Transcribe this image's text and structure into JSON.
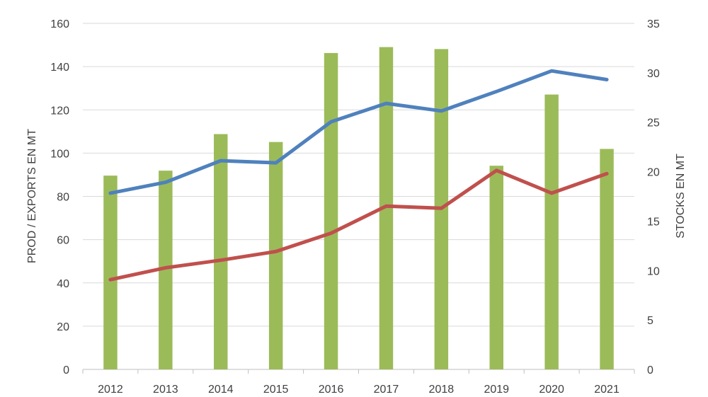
{
  "chart_data": {
    "type": "bar",
    "title": "",
    "categories": [
      "2012",
      "2013",
      "2014",
      "2015",
      "2016",
      "2017",
      "2018",
      "2019",
      "2020",
      "2021"
    ],
    "series": [
      {
        "type": "bar",
        "axis": "right",
        "color": "#9BBB59",
        "values": [
          19.6,
          20.1,
          23.8,
          23.0,
          32.0,
          32.6,
          32.4,
          20.6,
          27.8,
          22.3
        ]
      },
      {
        "type": "line",
        "axis": "left",
        "color": "#4F81BD",
        "values": [
          81.5,
          86.5,
          96.5,
          95.5,
          114.5,
          123,
          119.5,
          128.5,
          138,
          134
        ]
      },
      {
        "type": "line",
        "axis": "left",
        "color": "#C0504D",
        "values": [
          41.5,
          47,
          50.5,
          54.5,
          63,
          75.5,
          74.5,
          92,
          81.5,
          90.5
        ]
      }
    ],
    "y_left": {
      "label": "PROD / EXPORTS EN MT",
      "ylim": [
        0,
        160
      ],
      "ticks": [
        "0",
        "20",
        "40",
        "60",
        "80",
        "100",
        "120",
        "140",
        "160"
      ]
    },
    "y_right": {
      "label": "STOCKS EN MT",
      "ylim": [
        0,
        35
      ],
      "ticks": [
        "0",
        "5",
        "10",
        "15",
        "20",
        "25",
        "30",
        "35"
      ]
    },
    "grid": true,
    "legend": "none"
  }
}
